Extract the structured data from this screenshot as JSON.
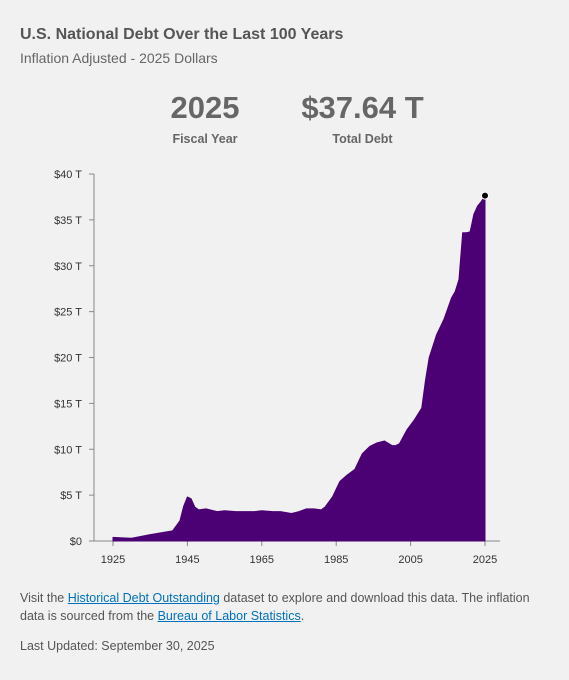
{
  "header": {
    "title": "U.S. National Debt Over the Last 100 Years",
    "subtitle": "Inflation Adjusted - 2025 Dollars"
  },
  "stats": {
    "year_value": "2025",
    "year_label": "Fiscal Year",
    "debt_value": "$37.64 T",
    "debt_label": "Total Debt"
  },
  "footer": {
    "text_1": "Visit the ",
    "link_1": "Historical Debt Outstanding",
    "text_2": " dataset to explore and download this data. The inflation data is sourced from the ",
    "link_2": "Bureau of Labor Statistics",
    "text_3": ".",
    "updated": "Last Updated: September 30, 2025"
  },
  "colors": {
    "area": "#4b0073",
    "axis": "#888888",
    "marker": "#000000"
  },
  "chart_data": {
    "type": "area",
    "title": "U.S. National Debt Over the Last 100 Years",
    "subtitle": "Inflation Adjusted - 2025 Dollars",
    "xlabel": "",
    "ylabel": "",
    "xlim": [
      1925,
      2025
    ],
    "ylim": [
      0,
      40
    ],
    "x_ticks": [
      1925,
      1945,
      1965,
      1985,
      2005,
      2025
    ],
    "y_ticks": [
      0,
      5,
      10,
      15,
      20,
      25,
      30,
      35,
      40
    ],
    "y_tick_labels": [
      "$0",
      "$5 T",
      "$10 T",
      "$15 T",
      "$20 T",
      "$25 T",
      "$30 T",
      "$35 T",
      "$40 T"
    ],
    "grid": false,
    "series": [
      {
        "name": "Total Debt",
        "x": [
          1925,
          1930,
          1935,
          1938,
          1941,
          1943,
          1944,
          1945,
          1946,
          1947,
          1948,
          1950,
          1953,
          1955,
          1958,
          1960,
          1963,
          1965,
          1968,
          1970,
          1973,
          1975,
          1977,
          1979,
          1981,
          1982,
          1984,
          1986,
          1988,
          1990,
          1992,
          1994,
          1996,
          1998,
          2000,
          2001,
          2002,
          2004,
          2006,
          2008,
          2009,
          2010,
          2012,
          2014,
          2016,
          2017,
          2018,
          2019,
          2020,
          2021,
          2022,
          2023,
          2024,
          2025
        ],
        "y": [
          0.4,
          0.3,
          0.7,
          0.9,
          1.1,
          2.2,
          3.8,
          4.8,
          4.6,
          3.7,
          3.4,
          3.5,
          3.2,
          3.3,
          3.2,
          3.2,
          3.2,
          3.3,
          3.2,
          3.2,
          3.0,
          3.2,
          3.5,
          3.5,
          3.4,
          3.7,
          4.8,
          6.5,
          7.2,
          7.8,
          9.5,
          10.3,
          10.7,
          10.9,
          10.4,
          10.4,
          10.6,
          12.1,
          13.2,
          14.5,
          17.5,
          20.0,
          22.5,
          24.2,
          26.5,
          27.2,
          28.5,
          33.6,
          33.6,
          33.7,
          35.6,
          36.5,
          37.0,
          37.64
        ]
      }
    ],
    "highlight": {
      "x": 2025,
      "y": 37.64
    }
  }
}
